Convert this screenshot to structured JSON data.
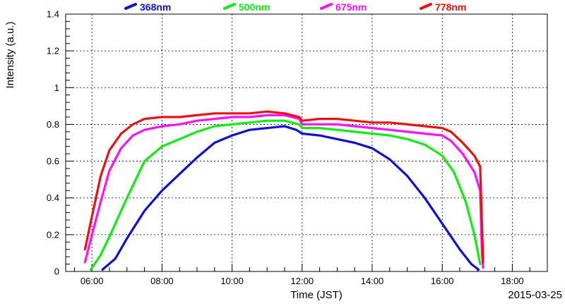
{
  "chart_data": {
    "type": "line",
    "xlabel": "Time (JST)",
    "ylabel": "Intensity (a.u.)",
    "date_label": "2015-03-25",
    "xlim": [
      "05:15",
      "19:00"
    ],
    "ylim": [
      0,
      1.4
    ],
    "x_ticks": [
      "06:00",
      "08:00",
      "10:00",
      "12:00",
      "14:00",
      "16:00",
      "18:00"
    ],
    "y_ticks": [
      "0",
      "0.2",
      "0.4",
      "0.6",
      "0.8",
      "1",
      "1.2",
      "1.4"
    ],
    "grid": true,
    "legend_position": "top",
    "series": [
      {
        "name": "368nm",
        "color": "#1010d0",
        "points": [
          [
            "06:18",
            0.01
          ],
          [
            "06:40",
            0.07
          ],
          [
            "07:00",
            0.18
          ],
          [
            "07:30",
            0.33
          ],
          [
            "08:00",
            0.44
          ],
          [
            "08:30",
            0.53
          ],
          [
            "09:00",
            0.62
          ],
          [
            "09:30",
            0.7
          ],
          [
            "10:00",
            0.74
          ],
          [
            "10:30",
            0.77
          ],
          [
            "11:00",
            0.78
          ],
          [
            "11:30",
            0.79
          ],
          [
            "11:50",
            0.77
          ],
          [
            "12:00",
            0.75
          ],
          [
            "12:30",
            0.74
          ],
          [
            "13:00",
            0.72
          ],
          [
            "13:30",
            0.7
          ],
          [
            "14:00",
            0.67
          ],
          [
            "14:30",
            0.61
          ],
          [
            "15:00",
            0.52
          ],
          [
            "15:30",
            0.4
          ],
          [
            "16:00",
            0.26
          ],
          [
            "16:30",
            0.12
          ],
          [
            "16:50",
            0.04
          ],
          [
            "17:02",
            0.01
          ]
        ]
      },
      {
        "name": "500nm",
        "color": "#10ee10",
        "points": [
          [
            "05:58",
            0.01
          ],
          [
            "06:15",
            0.09
          ],
          [
            "06:30",
            0.19
          ],
          [
            "07:00",
            0.4
          ],
          [
            "07:30",
            0.6
          ],
          [
            "08:00",
            0.68
          ],
          [
            "08:30",
            0.72
          ],
          [
            "09:00",
            0.76
          ],
          [
            "09:30",
            0.79
          ],
          [
            "10:00",
            0.8
          ],
          [
            "10:30",
            0.81
          ],
          [
            "11:00",
            0.82
          ],
          [
            "11:30",
            0.82
          ],
          [
            "11:55",
            0.8
          ],
          [
            "12:00",
            0.78
          ],
          [
            "12:30",
            0.78
          ],
          [
            "13:00",
            0.77
          ],
          [
            "13:30",
            0.76
          ],
          [
            "14:00",
            0.75
          ],
          [
            "14:30",
            0.74
          ],
          [
            "15:00",
            0.72
          ],
          [
            "15:30",
            0.69
          ],
          [
            "16:00",
            0.63
          ],
          [
            "16:20",
            0.54
          ],
          [
            "16:40",
            0.38
          ],
          [
            "16:55",
            0.2
          ],
          [
            "17:05",
            0.04
          ]
        ]
      },
      {
        "name": "675nm",
        "color": "#ff10ff",
        "points": [
          [
            "05:48",
            0.05
          ],
          [
            "06:00",
            0.2
          ],
          [
            "06:15",
            0.38
          ],
          [
            "06:30",
            0.55
          ],
          [
            "06:50",
            0.67
          ],
          [
            "07:10",
            0.74
          ],
          [
            "07:30",
            0.77
          ],
          [
            "08:00",
            0.79
          ],
          [
            "08:30",
            0.8
          ],
          [
            "09:00",
            0.82
          ],
          [
            "09:30",
            0.83
          ],
          [
            "10:00",
            0.84
          ],
          [
            "10:30",
            0.84
          ],
          [
            "11:00",
            0.85
          ],
          [
            "11:30",
            0.85
          ],
          [
            "11:55",
            0.83
          ],
          [
            "12:00",
            0.8
          ],
          [
            "12:30",
            0.8
          ],
          [
            "13:00",
            0.8
          ],
          [
            "13:30",
            0.79
          ],
          [
            "14:00",
            0.78
          ],
          [
            "14:30",
            0.77
          ],
          [
            "15:00",
            0.76
          ],
          [
            "15:30",
            0.75
          ],
          [
            "16:00",
            0.74
          ],
          [
            "16:15",
            0.71
          ],
          [
            "16:35",
            0.64
          ],
          [
            "16:55",
            0.54
          ],
          [
            "17:05",
            0.44
          ],
          [
            "17:08",
            0.1
          ],
          [
            "17:10",
            0.02
          ]
        ]
      },
      {
        "name": "778nm",
        "color": "#ee1010",
        "points": [
          [
            "05:48",
            0.12
          ],
          [
            "06:00",
            0.3
          ],
          [
            "06:15",
            0.52
          ],
          [
            "06:30",
            0.66
          ],
          [
            "06:50",
            0.75
          ],
          [
            "07:10",
            0.8
          ],
          [
            "07:30",
            0.83
          ],
          [
            "08:00",
            0.84
          ],
          [
            "08:30",
            0.84
          ],
          [
            "09:00",
            0.85
          ],
          [
            "09:30",
            0.86
          ],
          [
            "10:00",
            0.86
          ],
          [
            "10:30",
            0.86
          ],
          [
            "11:00",
            0.87
          ],
          [
            "11:30",
            0.86
          ],
          [
            "11:55",
            0.84
          ],
          [
            "12:00",
            0.82
          ],
          [
            "12:30",
            0.83
          ],
          [
            "13:00",
            0.83
          ],
          [
            "13:30",
            0.82
          ],
          [
            "14:00",
            0.81
          ],
          [
            "14:30",
            0.81
          ],
          [
            "15:00",
            0.8
          ],
          [
            "15:30",
            0.79
          ],
          [
            "16:00",
            0.78
          ],
          [
            "16:15",
            0.76
          ],
          [
            "16:35",
            0.7
          ],
          [
            "16:55",
            0.63
          ],
          [
            "17:05",
            0.57
          ],
          [
            "17:07",
            0.35
          ],
          [
            "17:10",
            0.05
          ]
        ]
      }
    ]
  }
}
